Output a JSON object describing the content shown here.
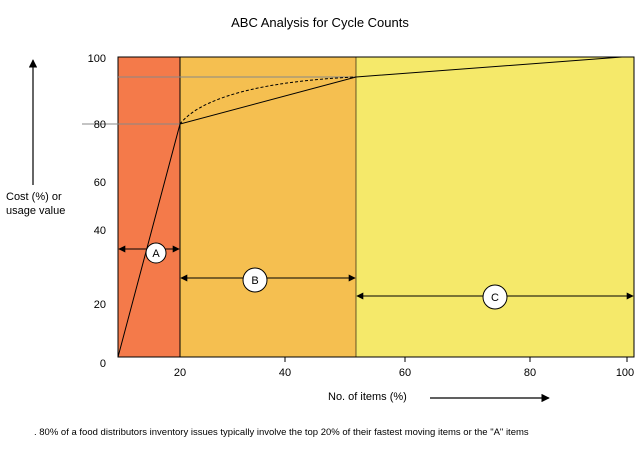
{
  "chart_data": {
    "type": "line",
    "title": "ABC Analysis for Cycle Counts",
    "xlabel": "No. of items (%)",
    "ylabel": "Cost (%) or usage value",
    "caption": ". 80% of a food distributors inventory issues typically involve the top 20% of their fastest moving items or the \"A\" items",
    "x_tick_labels": [
      "20",
      "40",
      "60",
      "80",
      "100"
    ],
    "y_tick_labels": [
      "0",
      "20",
      "40",
      "60",
      "80",
      "100"
    ],
    "zones": [
      {
        "label": "A",
        "color": "#f47a4a"
      },
      {
        "label": "B",
        "color": "#f5bf50"
      },
      {
        "label": "C",
        "color": "#f5e96a"
      }
    ],
    "series": [
      {
        "style": "solid",
        "x": [
          10,
          20,
          52,
          100
        ],
        "y": [
          0,
          80,
          95,
          100
        ]
      },
      {
        "style": "dashed",
        "x": [
          20,
          24,
          30,
          38,
          46,
          52
        ],
        "y": [
          80,
          85.5,
          89.5,
          92.3,
          94.1,
          95
        ]
      }
    ],
    "reference_lines_y": [
      80,
      95
    ]
  }
}
